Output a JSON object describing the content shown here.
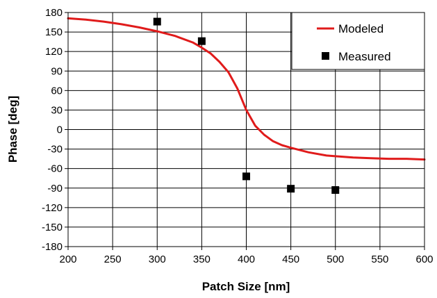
{
  "chart_data": {
    "type": "line",
    "title": "",
    "xlabel": "Patch Size [nm]",
    "ylabel": "Phase [deg]",
    "xlim": [
      200,
      600
    ],
    "ylim": [
      -180,
      180
    ],
    "x_ticks": [
      "200",
      "250",
      "300",
      "350",
      "400",
      "450",
      "500",
      "550",
      "600"
    ],
    "y_ticks": [
      "180",
      "150",
      "120",
      "90",
      "60",
      "30",
      "0",
      "-30",
      "-60",
      "-90",
      "-120",
      "-150",
      "-180"
    ],
    "grid": true,
    "legend_position": "top-right",
    "series": [
      {
        "name": "Modeled",
        "kind": "line",
        "color": "#e01b1b",
        "x": [
          200,
          220,
          240,
          260,
          280,
          300,
          320,
          340,
          350,
          360,
          370,
          380,
          390,
          400,
          410,
          420,
          430,
          440,
          450,
          470,
          490,
          500,
          520,
          540,
          560,
          580,
          600
        ],
        "y": [
          171,
          169,
          166,
          162,
          157,
          151,
          144,
          134,
          126,
          117,
          104,
          88,
          63,
          30,
          6,
          -8,
          -18,
          -24,
          -28,
          -35,
          -40,
          -41,
          -43,
          -44,
          -45,
          -45,
          -46
        ]
      },
      {
        "name": "Measured",
        "kind": "scatter",
        "color": "#000000",
        "x": [
          300,
          350,
          400,
          450,
          500
        ],
        "y": [
          166,
          136,
          -72,
          -91,
          -93
        ]
      }
    ]
  }
}
